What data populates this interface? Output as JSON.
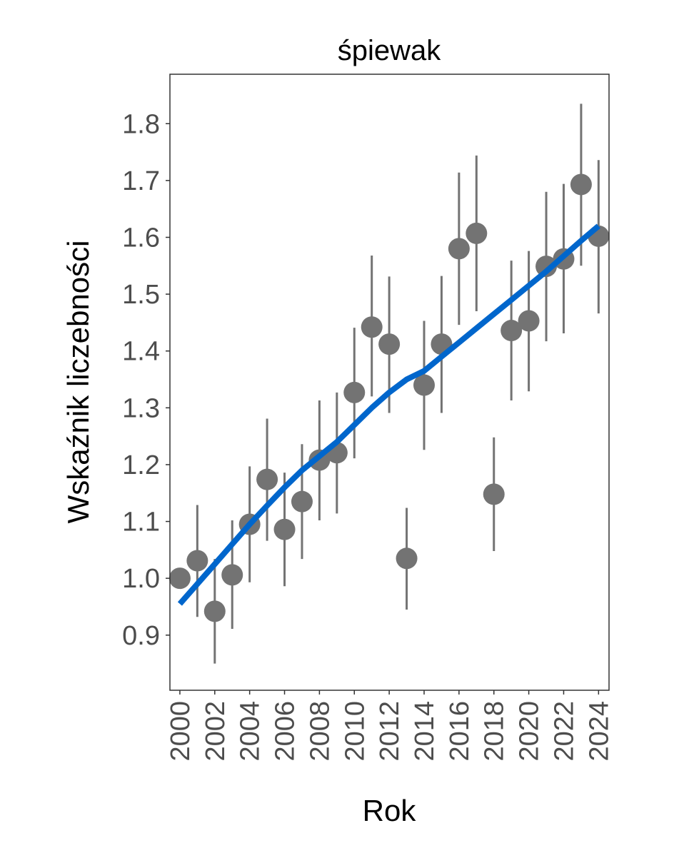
{
  "chart_data": {
    "type": "scatter",
    "title": "śpiewak",
    "xlabel": "Rok",
    "ylabel": "Wskaźnik liczebności",
    "xlim": [
      1999.43,
      2024.6
    ],
    "ylim": [
      0.803,
      1.887
    ],
    "yticks": [
      "0.9",
      "1.0",
      "1.1",
      "1.2",
      "1.3",
      "1.4",
      "1.5",
      "1.6",
      "1.7",
      "1.8"
    ],
    "xticks": [
      "2000",
      "2002",
      "2004",
      "2006",
      "2008",
      "2010",
      "2012",
      "2014",
      "2016",
      "2018",
      "2020",
      "2022",
      "2024"
    ],
    "grid": false,
    "legend": "none",
    "colors": {
      "points": "#737373",
      "trend": "#0066cc",
      "frame": "#333333"
    },
    "series": [
      {
        "name": "index",
        "x": [
          2000,
          2001,
          2002,
          2003,
          2004,
          2005,
          2006,
          2007,
          2008,
          2009,
          2010,
          2011,
          2012,
          2013,
          2014,
          2015,
          2016,
          2017,
          2018,
          2019,
          2020,
          2021,
          2022,
          2023,
          2024
        ],
        "y": [
          1.0,
          1.031,
          0.942,
          1.006,
          1.095,
          1.174,
          1.086,
          1.135,
          1.208,
          1.221,
          1.327,
          1.442,
          1.412,
          1.035,
          1.34,
          1.412,
          1.58,
          1.607,
          1.148,
          1.436,
          1.453,
          1.549,
          1.562,
          1.693,
          1.602
        ],
        "lower": [
          1.0,
          0.932,
          0.85,
          0.911,
          0.993,
          1.066,
          0.986,
          1.034,
          1.102,
          1.114,
          1.211,
          1.32,
          1.291,
          0.945,
          1.226,
          1.291,
          1.446,
          1.47,
          1.048,
          1.313,
          1.329,
          1.417,
          1.431,
          1.55,
          1.466
        ],
        "upper": [
          1.0,
          1.129,
          1.034,
          1.102,
          1.197,
          1.281,
          1.186,
          1.236,
          1.313,
          1.327,
          1.441,
          1.568,
          1.531,
          1.124,
          1.453,
          1.532,
          1.714,
          1.744,
          1.248,
          1.559,
          1.576,
          1.68,
          1.694,
          1.835,
          1.736
        ]
      },
      {
        "name": "trend",
        "x": [
          2000,
          2001,
          2002,
          2003,
          2004,
          2005,
          2006,
          2007,
          2008,
          2009,
          2010,
          2011,
          2012,
          2013,
          2014,
          2015,
          2016,
          2017,
          2018,
          2019,
          2020,
          2021,
          2022,
          2023,
          2024
        ],
        "y": [
          0.955,
          0.99,
          1.025,
          1.06,
          1.095,
          1.128,
          1.16,
          1.19,
          1.215,
          1.24,
          1.27,
          1.3,
          1.327,
          1.35,
          1.365,
          1.39,
          1.415,
          1.44,
          1.465,
          1.49,
          1.515,
          1.54,
          1.567,
          1.594,
          1.62
        ]
      }
    ]
  }
}
